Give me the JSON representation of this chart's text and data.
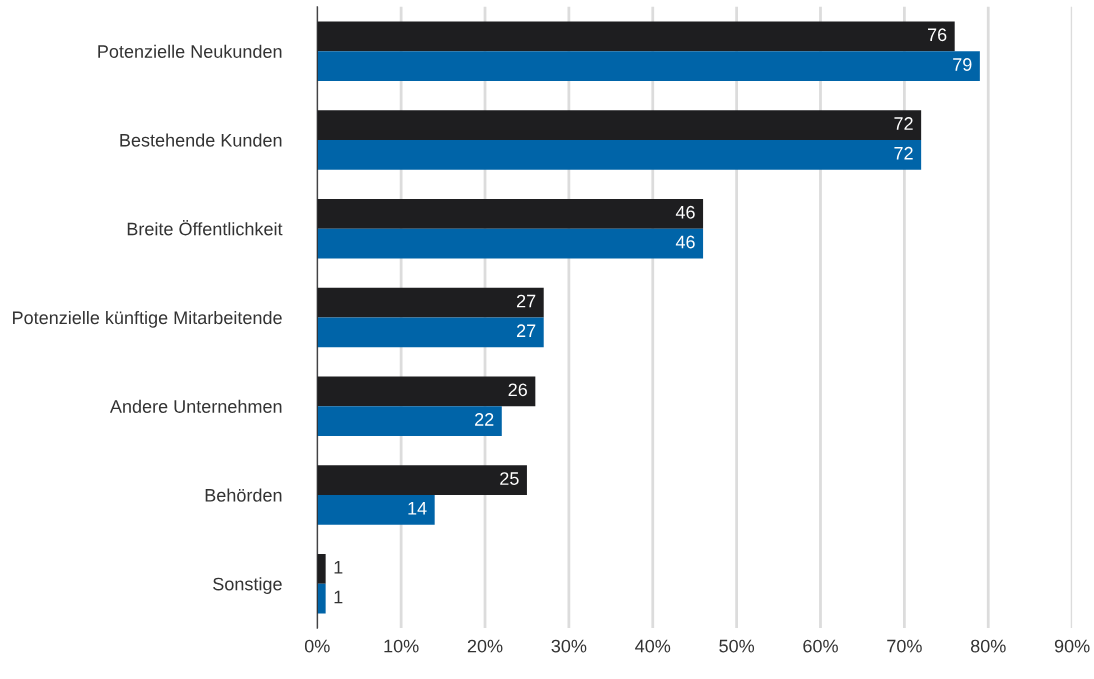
{
  "chart_data": {
    "type": "bar",
    "orientation": "horizontal",
    "categories": [
      "Potenzielle Neukunden",
      "Bestehende Kunden",
      "Breite Öffentlichkeit",
      "Potenzielle künftige Mitarbeitende",
      "Andere Unternehmen",
      "Behörden",
      "Sonstige"
    ],
    "series": [
      {
        "color": "#1e1e20",
        "values": [
          76,
          72,
          46,
          27,
          26,
          25,
          1
        ]
      },
      {
        "color": "#0064a8",
        "values": [
          79,
          72,
          46,
          27,
          22,
          14,
          1
        ]
      }
    ],
    "xlim": [
      0,
      90
    ],
    "xticks": [
      {
        "value": 0,
        "label": "0%"
      },
      {
        "value": 10,
        "label": "10%"
      },
      {
        "value": 20,
        "label": "20%"
      },
      {
        "value": 30,
        "label": "30%"
      },
      {
        "value": 40,
        "label": "40%"
      },
      {
        "value": 50,
        "label": "50%"
      },
      {
        "value": 60,
        "label": "60%"
      },
      {
        "value": 70,
        "label": "70%"
      },
      {
        "value": 80,
        "label": "80%"
      },
      {
        "value": 90,
        "label": "90%"
      }
    ],
    "grid": "x",
    "data_labels": true
  }
}
